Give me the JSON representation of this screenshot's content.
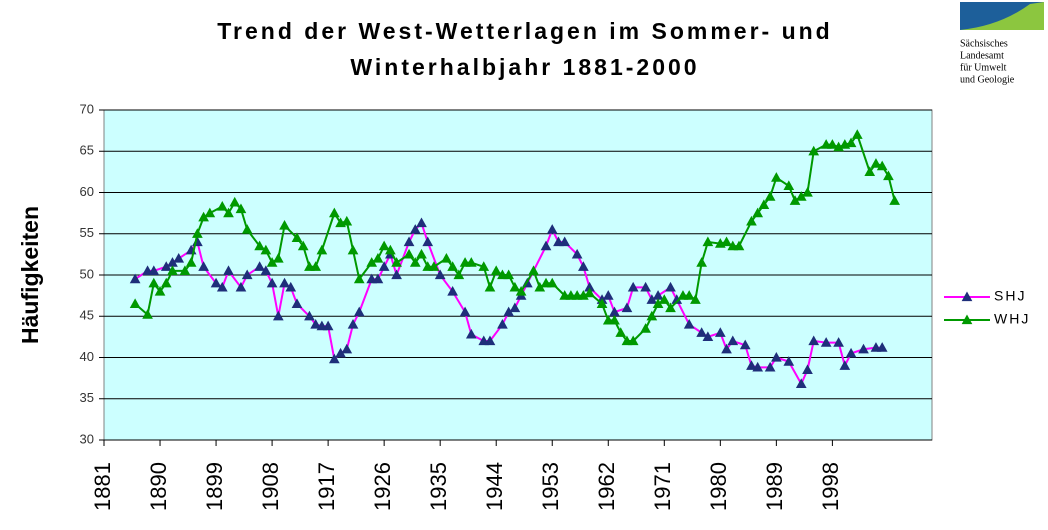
{
  "chart_data": {
    "type": "line",
    "title": [
      "Trend der West-Wetterlagen im Sommer- und",
      "Winterhalbjahr 1881-2000"
    ],
    "logo_text": [
      "Sächsisches",
      "Landesamt",
      "für Umwelt",
      "und Geologie"
    ],
    "y_label": "Häufigkeiten",
    "xlim": [
      1881,
      2014
    ],
    "xticks": [
      1881,
      1890,
      1899,
      1908,
      1917,
      1926,
      1935,
      1944,
      1953,
      1962,
      1971,
      1980,
      1989,
      1998
    ],
    "ylim": [
      30,
      70
    ],
    "yticks": [
      30,
      35,
      40,
      45,
      50,
      55,
      60,
      65,
      70
    ],
    "grid": true,
    "background": "#ccffff",
    "legend": "right",
    "series": [
      {
        "name": "SHJ",
        "color": "#ff00ff",
        "marker_color": "#1f2f7a",
        "x": [
          1886,
          1888,
          1889,
          1891,
          1892,
          1893,
          1895,
          1896,
          1897,
          1899,
          1900,
          1901,
          1903,
          1904,
          1906,
          1907,
          1908,
          1909,
          1910,
          1911,
          1912,
          1914,
          1915,
          1916,
          1917,
          1918,
          1919,
          1920,
          1921,
          1922,
          1924,
          1925,
          1926,
          1927,
          1928,
          1930,
          1931,
          1932,
          1933,
          1935,
          1937,
          1939,
          1940,
          1942,
          1943,
          1945,
          1946,
          1947,
          1948,
          1949,
          1952,
          1953,
          1954,
          1955,
          1957,
          1958,
          1959,
          1961,
          1962,
          1963,
          1965,
          1966,
          1968,
          1969,
          1970,
          1972,
          1973,
          1975,
          1977,
          1978,
          1980,
          1981,
          1982,
          1984,
          1985,
          1986,
          1988,
          1989,
          1991,
          1993,
          1994,
          1995,
          1997,
          1999,
          2000,
          2001,
          2003,
          2005,
          2006
        ],
        "values": [
          49.5,
          50.5,
          50.5,
          51,
          51.5,
          52,
          53,
          54,
          51,
          49,
          48.5,
          50.5,
          48.5,
          50,
          51,
          50.5,
          49,
          45,
          49,
          48.5,
          46.5,
          45,
          44,
          43.8,
          43.8,
          39.8,
          40.5,
          41,
          44,
          45.5,
          49.5,
          49.5,
          51,
          52.5,
          50,
          54,
          55.5,
          56.3,
          54,
          50,
          48,
          45.5,
          42.8,
          42,
          42,
          44,
          45.5,
          46,
          47.5,
          49,
          53.5,
          55.5,
          54,
          54,
          52.5,
          51,
          48.5,
          47,
          47.5,
          45.5,
          46,
          48.5,
          48.5,
          47,
          47.5,
          48.5,
          47,
          44,
          43,
          42.5,
          43,
          41,
          42,
          41.5,
          39,
          38.8,
          38.8,
          40,
          39.5,
          36.8,
          38.5,
          42,
          41.8,
          41.8,
          39,
          40.5,
          41,
          41.2,
          41.2
        ]
      },
      {
        "name": "WHJ",
        "color": "#009900",
        "marker_color": "#009900",
        "x": [
          1886,
          1888,
          1889,
          1890,
          1891,
          1892,
          1894,
          1895,
          1896,
          1897,
          1898,
          1900,
          1901,
          1902,
          1903,
          1904,
          1906,
          1907,
          1908,
          1909,
          1910,
          1912,
          1913,
          1914,
          1915,
          1916,
          1918,
          1919,
          1920,
          1921,
          1922,
          1924,
          1925,
          1926,
          1927,
          1928,
          1930,
          1931,
          1932,
          1933,
          1934,
          1936,
          1937,
          1938,
          1939,
          1940,
          1942,
          1943,
          1944,
          1945,
          1946,
          1947,
          1948,
          1950,
          1951,
          1952,
          1953,
          1955,
          1956,
          1957,
          1958,
          1959,
          1961,
          1962,
          1963,
          1964,
          1965,
          1966,
          1968,
          1969,
          1970,
          1971,
          1972,
          1974,
          1975,
          1976,
          1977,
          1978,
          1980,
          1981,
          1982,
          1983,
          1985,
          1986,
          1987,
          1988,
          1989,
          1991,
          1992,
          1993,
          1994,
          1995,
          1997,
          1998,
          1999,
          2000,
          2001,
          2002,
          2004,
          2005,
          2006,
          2007,
          2008
        ],
        "values": [
          46.5,
          45.2,
          49,
          48,
          49,
          50.5,
          50.5,
          51.5,
          55,
          57,
          57.5,
          58.3,
          57.5,
          58.8,
          58,
          55.5,
          53.5,
          53,
          51.5,
          52,
          56,
          54.5,
          53.5,
          51,
          51,
          53,
          57.5,
          56.3,
          56.5,
          53,
          49.5,
          51.5,
          52,
          53.5,
          53,
          51.5,
          52.5,
          51.5,
          52.5,
          51,
          51,
          52,
          51,
          50,
          51.5,
          51.5,
          51,
          48.5,
          50.5,
          50,
          50,
          48.5,
          48,
          50.5,
          48.5,
          49,
          49,
          47.5,
          47.5,
          47.5,
          47.5,
          47.8,
          46.5,
          44.5,
          44.5,
          43,
          42,
          42,
          43.5,
          45,
          46.5,
          47,
          46,
          47.5,
          47.5,
          47,
          51.5,
          54,
          53.8,
          54,
          53.5,
          53.5,
          56.5,
          57.5,
          58.5,
          59.5,
          61.8,
          60.8,
          59,
          59.5,
          60,
          65,
          65.8,
          65.8,
          65.5,
          65.8,
          66,
          67,
          62.5,
          63.5,
          63.2,
          62,
          59
        ]
      }
    ]
  }
}
